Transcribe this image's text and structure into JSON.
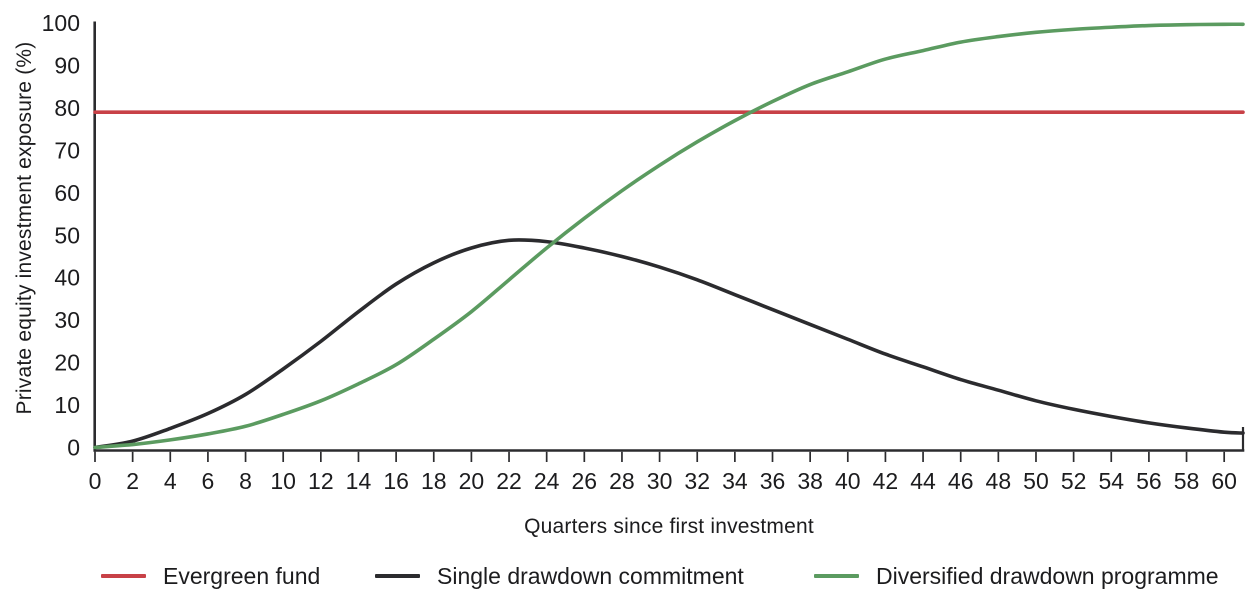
{
  "figure": {
    "y_axis_title": "Private equity investment exposure (%)",
    "x_axis_title": "Quarters since first investment"
  },
  "chart_data": {
    "type": "line",
    "title": "",
    "xlabel": "Quarters since first investment",
    "ylabel": "Private equity investment exposure (%)",
    "xlim": [
      0,
      61
    ],
    "ylim": [
      0,
      100
    ],
    "grid": false,
    "legend_position": "bottom",
    "axis_color": "#2b2b2e",
    "x_ticks": [
      0,
      2,
      4,
      6,
      8,
      10,
      12,
      14,
      16,
      18,
      20,
      22,
      24,
      26,
      28,
      30,
      32,
      34,
      36,
      38,
      40,
      42,
      44,
      46,
      48,
      50,
      52,
      54,
      56,
      58,
      60
    ],
    "y_ticks": [
      0,
      10,
      20,
      30,
      40,
      50,
      60,
      70,
      80,
      90,
      100
    ],
    "x": [
      0,
      2,
      4,
      6,
      8,
      10,
      12,
      14,
      16,
      18,
      20,
      22,
      24,
      26,
      28,
      30,
      32,
      34,
      36,
      38,
      40,
      42,
      44,
      46,
      48,
      50,
      52,
      54,
      56,
      58,
      60,
      61
    ],
    "series": [
      {
        "name": "Evergreen fund",
        "color": "#c84147",
        "constant": 79
      },
      {
        "name": "Single drawdown commitment",
        "color": "#2b2b2e",
        "values": [
          0,
          1.5,
          4.5,
          8,
          12.5,
          18.5,
          25,
          32,
          38.5,
          43.5,
          47,
          48.8,
          48.5,
          47,
          45,
          42.5,
          39.5,
          36,
          32.5,
          29,
          25.5,
          22,
          19,
          16,
          13.5,
          11,
          9,
          7.3,
          5.8,
          4.6,
          3.6,
          3.4
        ]
      },
      {
        "name": "Diversified drawdown programme",
        "color": "#5b9b60",
        "values": [
          0,
          0.7,
          1.8,
          3.2,
          5,
          7.8,
          11,
          15,
          19.5,
          25.5,
          32,
          39.5,
          47,
          54,
          60.5,
          66.5,
          72,
          77,
          81.5,
          85.5,
          88.5,
          91.5,
          93.5,
          95.5,
          96.8,
          97.8,
          98.5,
          99,
          99.4,
          99.6,
          99.7,
          99.7
        ]
      }
    ]
  }
}
